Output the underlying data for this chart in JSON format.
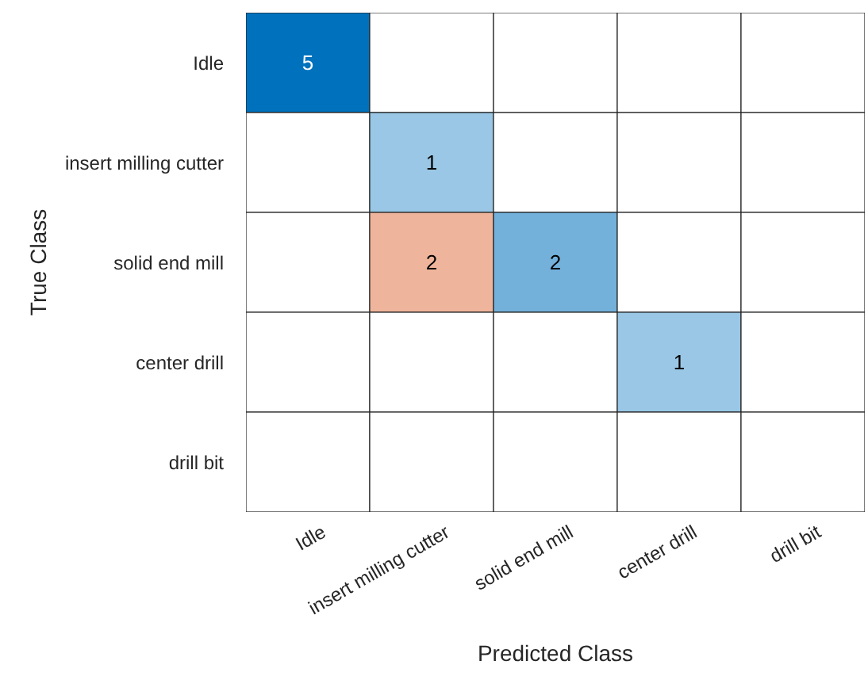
{
  "chart_data": {
    "type": "heatmap",
    "xlabel": "Predicted Class",
    "ylabel": "True Class",
    "categories": [
      "Idle",
      "insert milling cutter",
      "solid end mill",
      "center drill",
      "drill bit"
    ],
    "y_categories": [
      "Idle",
      "insert milling cutter",
      "solid end mill",
      "center drill",
      "drill bit"
    ],
    "cells": [
      [
        5,
        null,
        null,
        null,
        null
      ],
      [
        null,
        1,
        null,
        null,
        null
      ],
      [
        null,
        2,
        2,
        null,
        null
      ],
      [
        null,
        null,
        null,
        1,
        null
      ],
      [
        null,
        null,
        null,
        null,
        null
      ]
    ],
    "data_labels": true
  }
}
